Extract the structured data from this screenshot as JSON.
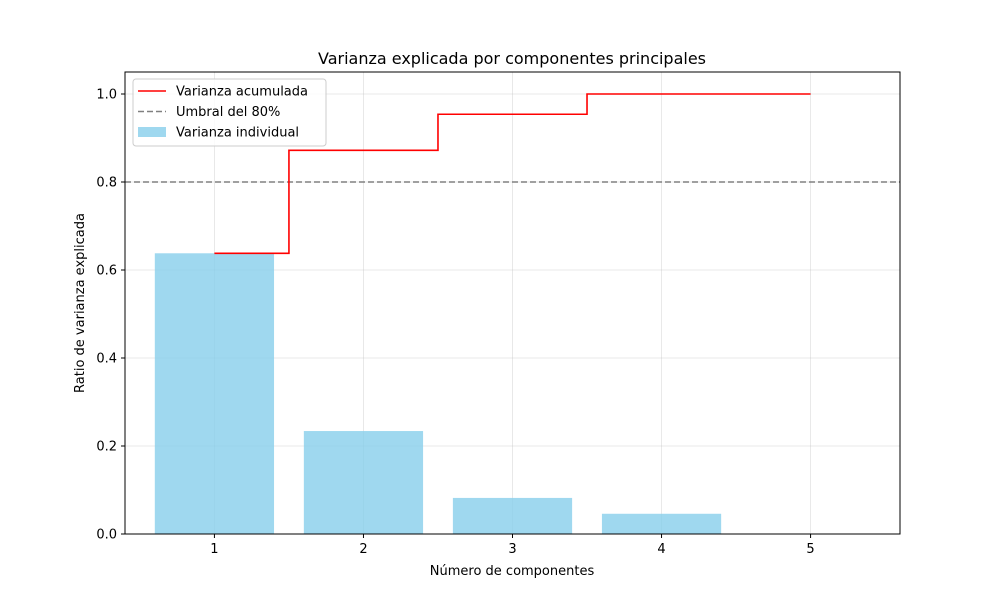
{
  "chart_data": {
    "type": "bar",
    "title": "Varianza explicada por componentes principales",
    "xlabel": "Número de componentes",
    "ylabel": "Ratio de varianza explicada",
    "categories": [
      1,
      2,
      3,
      4,
      5
    ],
    "xticks": [
      "1",
      "2",
      "3",
      "4",
      "5"
    ],
    "yticks": [
      "0.0",
      "0.2",
      "0.4",
      "0.6",
      "0.8",
      "1.0"
    ],
    "xlim": [
      0.4,
      5.6
    ],
    "ylim": [
      0,
      1.05
    ],
    "grid": true,
    "legend_position": "top-left",
    "series": [
      {
        "name": "Varianza individual",
        "kind": "bar",
        "color": "#87ceeb",
        "values": [
          0.638,
          0.234,
          0.082,
          0.046,
          0.0
        ]
      },
      {
        "name": "Varianza acumulada",
        "kind": "step",
        "color": "#ff0000",
        "values": [
          0.638,
          0.872,
          0.954,
          1.0,
          1.0
        ]
      }
    ],
    "threshold": {
      "name": "Umbral del 80%",
      "value": 0.8,
      "color": "#808080",
      "style": "dashed"
    }
  }
}
